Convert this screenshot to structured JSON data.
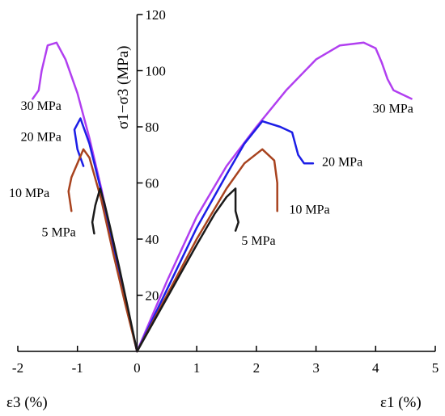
{
  "chart_data": {
    "type": "line",
    "title": "",
    "xlabel_left": "ε3 (%)",
    "xlabel_right": "ε1 (%)",
    "ylabel": "σ1−σ3 (MPa)",
    "xlim": [
      -2,
      5
    ],
    "ylim": [
      0,
      120
    ],
    "x_ticks": [
      -2,
      -1,
      0,
      1,
      2,
      3,
      4,
      5
    ],
    "y_ticks": [
      20,
      40,
      60,
      80,
      100,
      120
    ],
    "grid": false,
    "series": [
      {
        "name": "30 MPa",
        "color": "#b13ff0",
        "axial": [
          [
            0,
            0
          ],
          [
            0.5,
            25
          ],
          [
            1,
            48
          ],
          [
            1.5,
            66
          ],
          [
            2,
            80
          ],
          [
            2.5,
            93
          ],
          [
            3,
            104
          ],
          [
            3.4,
            109
          ],
          [
            3.8,
            110
          ],
          [
            4.0,
            108
          ],
          [
            4.1,
            103
          ],
          [
            4.2,
            97
          ],
          [
            4.3,
            93
          ],
          [
            4.6,
            90
          ]
        ],
        "lateral": [
          [
            0,
            0
          ],
          [
            -0.2,
            18
          ],
          [
            -0.4,
            38
          ],
          [
            -0.6,
            58
          ],
          [
            -0.8,
            76
          ],
          [
            -1.0,
            92
          ],
          [
            -1.2,
            104
          ],
          [
            -1.35,
            110
          ],
          [
            -1.5,
            109
          ],
          [
            -1.6,
            100
          ],
          [
            -1.65,
            93
          ],
          [
            -1.75,
            90
          ]
        ]
      },
      {
        "name": "20 MPa",
        "color": "#1c1ee6",
        "axial": [
          [
            0,
            0
          ],
          [
            0.5,
            22
          ],
          [
            1,
            44
          ],
          [
            1.5,
            63
          ],
          [
            1.8,
            74
          ],
          [
            2.1,
            82
          ],
          [
            2.4,
            80
          ],
          [
            2.6,
            78
          ],
          [
            2.7,
            70
          ],
          [
            2.8,
            67
          ],
          [
            2.95,
            67
          ]
        ],
        "lateral": [
          [
            0,
            0
          ],
          [
            -0.2,
            18
          ],
          [
            -0.4,
            37
          ],
          [
            -0.6,
            57
          ],
          [
            -0.8,
            74
          ],
          [
            -0.95,
            83
          ],
          [
            -1.05,
            79
          ],
          [
            -1.0,
            72
          ],
          [
            -0.9,
            66
          ]
        ]
      },
      {
        "name": "10 MPa",
        "color": "#a8431f",
        "axial": [
          [
            0,
            0
          ],
          [
            0.5,
            20
          ],
          [
            1,
            40
          ],
          [
            1.5,
            58
          ],
          [
            1.8,
            67
          ],
          [
            2.1,
            72
          ],
          [
            2.3,
            68
          ],
          [
            2.35,
            60
          ],
          [
            2.35,
            50
          ]
        ],
        "lateral": [
          [
            0,
            0
          ],
          [
            -0.2,
            17
          ],
          [
            -0.4,
            35
          ],
          [
            -0.6,
            54
          ],
          [
            -0.8,
            69
          ],
          [
            -0.9,
            72
          ],
          [
            -1.0,
            67
          ],
          [
            -1.1,
            62
          ],
          [
            -1.15,
            57
          ],
          [
            -1.1,
            50
          ]
        ]
      },
      {
        "name": "5 MPa",
        "color": "#1a1a1a",
        "axial": [
          [
            0,
            0
          ],
          [
            0.5,
            19
          ],
          [
            1,
            38
          ],
          [
            1.3,
            49
          ],
          [
            1.5,
            55
          ],
          [
            1.65,
            58
          ],
          [
            1.65,
            50
          ],
          [
            1.7,
            46
          ],
          [
            1.65,
            43
          ]
        ],
        "lateral": [
          [
            0,
            0
          ],
          [
            -0.15,
            15
          ],
          [
            -0.3,
            30
          ],
          [
            -0.45,
            44
          ],
          [
            -0.55,
            53
          ],
          [
            -0.62,
            58
          ],
          [
            -0.7,
            52
          ],
          [
            -0.75,
            46
          ],
          [
            -0.72,
            42
          ]
        ]
      }
    ],
    "annotations": {
      "left": [
        {
          "text": "30 MPa",
          "x": -1.95,
          "y": 86
        },
        {
          "text": "20 MPa",
          "x": -1.95,
          "y": 75
        },
        {
          "text": "10 MPa",
          "x": -2.15,
          "y": 55
        },
        {
          "text": "5 MPa",
          "x": -1.6,
          "y": 41
        }
      ],
      "right": [
        {
          "text": "30 MPa",
          "x": 3.95,
          "y": 85
        },
        {
          "text": "20 MPa",
          "x": 3.1,
          "y": 66
        },
        {
          "text": "10 MPa",
          "x": 2.55,
          "y": 49
        },
        {
          "text": "5 MPa",
          "x": 1.75,
          "y": 38
        }
      ]
    }
  }
}
